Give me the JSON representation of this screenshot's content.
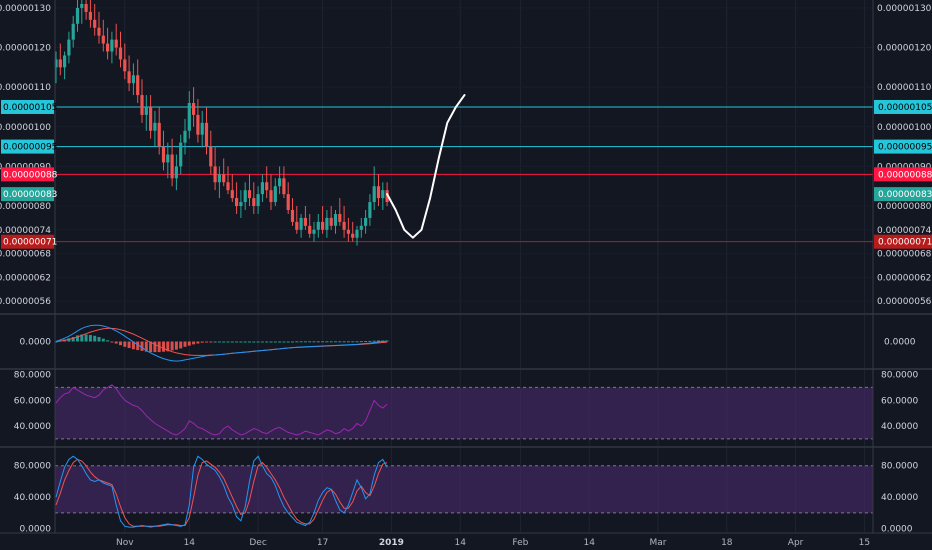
{
  "chart_data": [
    {
      "type": "candlestick",
      "panel": "price",
      "y_ticks": [
        "0.00000130",
        "0.00000120",
        "0.00000110",
        "0.00000100",
        "0.00000090",
        "0.00000080",
        "0.00000074",
        "0.00000068",
        "0.00000062",
        "0.00000056"
      ],
      "y_tick_values": [
        130,
        120,
        110,
        100,
        90,
        80,
        74,
        68,
        62,
        56
      ],
      "price_scale_note": "values in 1e-8 units",
      "ylim": [
        53,
        132
      ],
      "horizontal_levels": [
        {
          "label": "0.00000105",
          "value": 105,
          "color": "#26c6da",
          "text_color": "#000000",
          "line": true
        },
        {
          "label": "0.00000095",
          "value": 95,
          "color": "#26c6da",
          "text_color": "#000000",
          "line": true
        },
        {
          "label": "0.00000088",
          "value": 88,
          "color": "#ff1744",
          "text_color": "#ffffff",
          "line": true
        },
        {
          "label": "0.00000083",
          "value": 83,
          "color": "#26a69a",
          "text_color": "#ffffff",
          "line": false
        },
        {
          "label": "0.00000071",
          "value": 71,
          "color": "#b71c1c",
          "text_color": "#ffffff",
          "line": true
        }
      ],
      "candles": [
        [
          115,
          119,
          111,
          117
        ],
        [
          117,
          121,
          113,
          115
        ],
        [
          115,
          119,
          112,
          118
        ],
        [
          118,
          124,
          116,
          122
        ],
        [
          122,
          128,
          120,
          126
        ],
        [
          126,
          132,
          124,
          130
        ],
        [
          130,
          132,
          126,
          131
        ],
        [
          131,
          132,
          127,
          129
        ],
        [
          129,
          132,
          125,
          127
        ],
        [
          127,
          131,
          123,
          125
        ],
        [
          125,
          129,
          121,
          123
        ],
        [
          123,
          127,
          119,
          121
        ],
        [
          121,
          125,
          117,
          119
        ],
        [
          119,
          124,
          116,
          122
        ],
        [
          122,
          126,
          118,
          120
        ],
        [
          120,
          124,
          115,
          117
        ],
        [
          117,
          121,
          112,
          114
        ],
        [
          114,
          118,
          109,
          111
        ],
        [
          111,
          116,
          108,
          113
        ],
        [
          113,
          117,
          106,
          108
        ],
        [
          108,
          112,
          101,
          103
        ],
        [
          103,
          108,
          99,
          105
        ],
        [
          105,
          108,
          97,
          99
        ],
        [
          99,
          104,
          95,
          101
        ],
        [
          101,
          105,
          93,
          95
        ],
        [
          95,
          99,
          89,
          91
        ],
        [
          91,
          96,
          87,
          93
        ],
        [
          93,
          97,
          85,
          87
        ],
        [
          87,
          93,
          84,
          90
        ],
        [
          90,
          98,
          88,
          96
        ],
        [
          96,
          102,
          93,
          99
        ],
        [
          99,
          109,
          97,
          106
        ],
        [
          106,
          110,
          100,
          103
        ],
        [
          103,
          107,
          96,
          98
        ],
        [
          98,
          104,
          95,
          101
        ],
        [
          101,
          105,
          93,
          95
        ],
        [
          95,
          99,
          88,
          90
        ],
        [
          90,
          95,
          84,
          86
        ],
        [
          86,
          90,
          82,
          88
        ],
        [
          88,
          92,
          85,
          86
        ],
        [
          86,
          90,
          83,
          84
        ],
        [
          84,
          88,
          81,
          82
        ],
        [
          82,
          86,
          78,
          80
        ],
        [
          80,
          84,
          77,
          81
        ],
        [
          81,
          86,
          79,
          84
        ],
        [
          84,
          88,
          80,
          82
        ],
        [
          82,
          86,
          78,
          80
        ],
        [
          80,
          85,
          78,
          83
        ],
        [
          83,
          88,
          81,
          86
        ],
        [
          86,
          90,
          82,
          84
        ],
        [
          84,
          88,
          79,
          81
        ],
        [
          81,
          87,
          80,
          85
        ],
        [
          85,
          90,
          83,
          87
        ],
        [
          87,
          90,
          82,
          83
        ],
        [
          83,
          86,
          78,
          79
        ],
        [
          79,
          82,
          75,
          76
        ],
        [
          76,
          80,
          73,
          74
        ],
        [
          74,
          78,
          72,
          77
        ],
        [
          77,
          80,
          74,
          75
        ],
        [
          75,
          78,
          72,
          73
        ],
        [
          73,
          76,
          71,
          74
        ],
        [
          74,
          78,
          72,
          76
        ],
        [
          76,
          80,
          73,
          74
        ],
        [
          74,
          79,
          72,
          77
        ],
        [
          77,
          80,
          74,
          75
        ],
        [
          75,
          79,
          73,
          78
        ],
        [
          78,
          82,
          75,
          76
        ],
        [
          76,
          80,
          72,
          74
        ],
        [
          74,
          77,
          71,
          73
        ],
        [
          73,
          76,
          71,
          72
        ],
        [
          72,
          75,
          70,
          74
        ],
        [
          74,
          77,
          72,
          75
        ],
        [
          75,
          79,
          73,
          77
        ],
        [
          77,
          83,
          75,
          81
        ],
        [
          81,
          90,
          79,
          85
        ],
        [
          85,
          88,
          80,
          82
        ],
        [
          82,
          86,
          79,
          84
        ],
        [
          84,
          86,
          80,
          81
        ]
      ],
      "up_color": "#26a69a",
      "down_color": "#ef5350",
      "projection_path_prices": [
        [
          0,
          83
        ],
        [
          2,
          79
        ],
        [
          4,
          74
        ],
        [
          6,
          72
        ],
        [
          8,
          74
        ],
        [
          10,
          82
        ],
        [
          12,
          92
        ],
        [
          14,
          101
        ],
        [
          16,
          105
        ],
        [
          18,
          108
        ]
      ],
      "projection_color": "#ffffff"
    },
    {
      "type": "macd",
      "panel": "macd",
      "y_ticks": [
        "0.0000"
      ],
      "ylim": [
        -6,
        6
      ],
      "macd": [
        0,
        0.4,
        0.8,
        1.3,
        1.9,
        2.6,
        3.2,
        3.6,
        3.9,
        4.0,
        4.0,
        3.8,
        3.5,
        3.1,
        2.6,
        2.0,
        1.3,
        0.6,
        -0.1,
        -0.8,
        -1.5,
        -2.2,
        -2.8,
        -3.3,
        -3.8,
        -4.2,
        -4.5,
        -4.7,
        -4.8,
        -4.7,
        -4.5,
        -4.3,
        -4.1,
        -3.9,
        -3.7,
        -3.5,
        -3.4,
        -3.3,
        -3.2,
        -3.1,
        -3.0,
        -2.9,
        -2.8,
        -2.7,
        -2.6,
        -2.5,
        -2.4,
        -2.3,
        -2.2,
        -2.1,
        -2.0,
        -1.9,
        -1.8,
        -1.7,
        -1.6,
        -1.5,
        -1.4,
        -1.35,
        -1.3,
        -1.25,
        -1.2,
        -1.15,
        -1.1,
        -1.05,
        -1.0,
        -0.95,
        -0.9,
        -0.85,
        -0.8,
        -0.75,
        -0.7,
        -0.6,
        -0.5,
        -0.4,
        -0.25,
        -0.1,
        0.0,
        0.1
      ],
      "signal": [
        0,
        0.1,
        0.3,
        0.5,
        0.8,
        1.1,
        1.5,
        1.9,
        2.3,
        2.6,
        2.9,
        3.1,
        3.2,
        3.2,
        3.1,
        2.9,
        2.6,
        2.2,
        1.8,
        1.3,
        0.8,
        0.3,
        -0.2,
        -0.7,
        -1.2,
        -1.7,
        -2.1,
        -2.5,
        -2.8,
        -3.0,
        -3.2,
        -3.3,
        -3.4,
        -3.4,
        -3.4,
        -3.4,
        -3.3,
        -3.3,
        -3.2,
        -3.1,
        -3.0,
        -2.9,
        -2.8,
        -2.7,
        -2.6,
        -2.5,
        -2.4,
        -2.3,
        -2.2,
        -2.1,
        -2.0,
        -1.9,
        -1.8,
        -1.7,
        -1.6,
        -1.5,
        -1.45,
        -1.4,
        -1.35,
        -1.3,
        -1.25,
        -1.2,
        -1.15,
        -1.1,
        -1.05,
        -1.0,
        -0.95,
        -0.9,
        -0.85,
        -0.8,
        -0.75,
        -0.7,
        -0.62,
        -0.54,
        -0.45,
        -0.35,
        -0.25,
        -0.15
      ],
      "macd_color": "#2196f3",
      "signal_color": "#ef5350",
      "hist_up_color": "#26a69a",
      "hist_down_color": "#ef5350"
    },
    {
      "type": "rsi",
      "panel": "rsi",
      "y_ticks": [
        "80.0000",
        "60.0000",
        "40.0000"
      ],
      "y_tick_values": [
        80,
        60,
        40
      ],
      "ylim": [
        26,
        82
      ],
      "band": [
        30,
        70
      ],
      "values": [
        58,
        62,
        65,
        66,
        70,
        68,
        66,
        64,
        63,
        62,
        64,
        68,
        70,
        72,
        69,
        64,
        60,
        58,
        56,
        55,
        52,
        48,
        45,
        42,
        40,
        38,
        36,
        34,
        33,
        35,
        38,
        44,
        42,
        39,
        38,
        36,
        34,
        33,
        34,
        38,
        40,
        37,
        35,
        33,
        34,
        36,
        38,
        37,
        35,
        34,
        36,
        38,
        39,
        37,
        35,
        34,
        33,
        34,
        36,
        35,
        34,
        33,
        35,
        37,
        36,
        34,
        35,
        38,
        36,
        38,
        42,
        40,
        44,
        52,
        60,
        56,
        54,
        57
      ],
      "line_color": "#9c27b0",
      "band_color": "#4a2a6a"
    },
    {
      "type": "stochastic",
      "panel": "stoch",
      "y_ticks": [
        "80.0000",
        "40.0000",
        "0.0000"
      ],
      "y_tick_values": [
        80,
        40,
        0
      ],
      "ylim": [
        -3,
        100
      ],
      "band": [
        20,
        80
      ],
      "k": [
        40,
        60,
        78,
        88,
        92,
        88,
        80,
        70,
        62,
        60,
        62,
        58,
        56,
        54,
        30,
        10,
        3,
        2,
        2,
        3,
        4,
        3,
        2,
        3,
        4,
        5,
        6,
        5,
        4,
        3,
        5,
        30,
        78,
        92,
        88,
        82,
        78,
        74,
        66,
        55,
        40,
        30,
        15,
        10,
        28,
        60,
        86,
        92,
        80,
        70,
        65,
        55,
        40,
        28,
        20,
        14,
        8,
        6,
        4,
        8,
        20,
        36,
        46,
        52,
        50,
        36,
        24,
        20,
        30,
        46,
        62,
        52,
        38,
        44,
        68,
        84,
        88,
        78
      ],
      "d": [
        30,
        45,
        62,
        74,
        84,
        88,
        86,
        80,
        72,
        66,
        62,
        60,
        58,
        56,
        44,
        28,
        14,
        6,
        3,
        3,
        3,
        3,
        3,
        3,
        3,
        4,
        5,
        5,
        5,
        4,
        4,
        14,
        40,
        68,
        84,
        86,
        82,
        78,
        72,
        64,
        52,
        40,
        28,
        18,
        20,
        36,
        60,
        80,
        84,
        78,
        70,
        62,
        52,
        40,
        30,
        20,
        12,
        8,
        6,
        6,
        12,
        24,
        36,
        46,
        50,
        44,
        34,
        26,
        26,
        34,
        48,
        54,
        46,
        42,
        54,
        70,
        82,
        84
      ],
      "k_color": "#2196f3",
      "d_color": "#ef5350",
      "band_color": "#4a2a6a"
    }
  ],
  "x_axis": {
    "labels": [
      "Nov",
      "14",
      "Dec",
      "17",
      "2019",
      "14",
      "Feb",
      "14",
      "Mar",
      "18",
      "Apr",
      "15"
    ],
    "bold": [
      "2019"
    ],
    "label_bar_index": [
      16,
      31,
      47,
      62,
      78,
      94,
      108,
      124,
      140,
      156,
      172,
      188
    ]
  }
}
